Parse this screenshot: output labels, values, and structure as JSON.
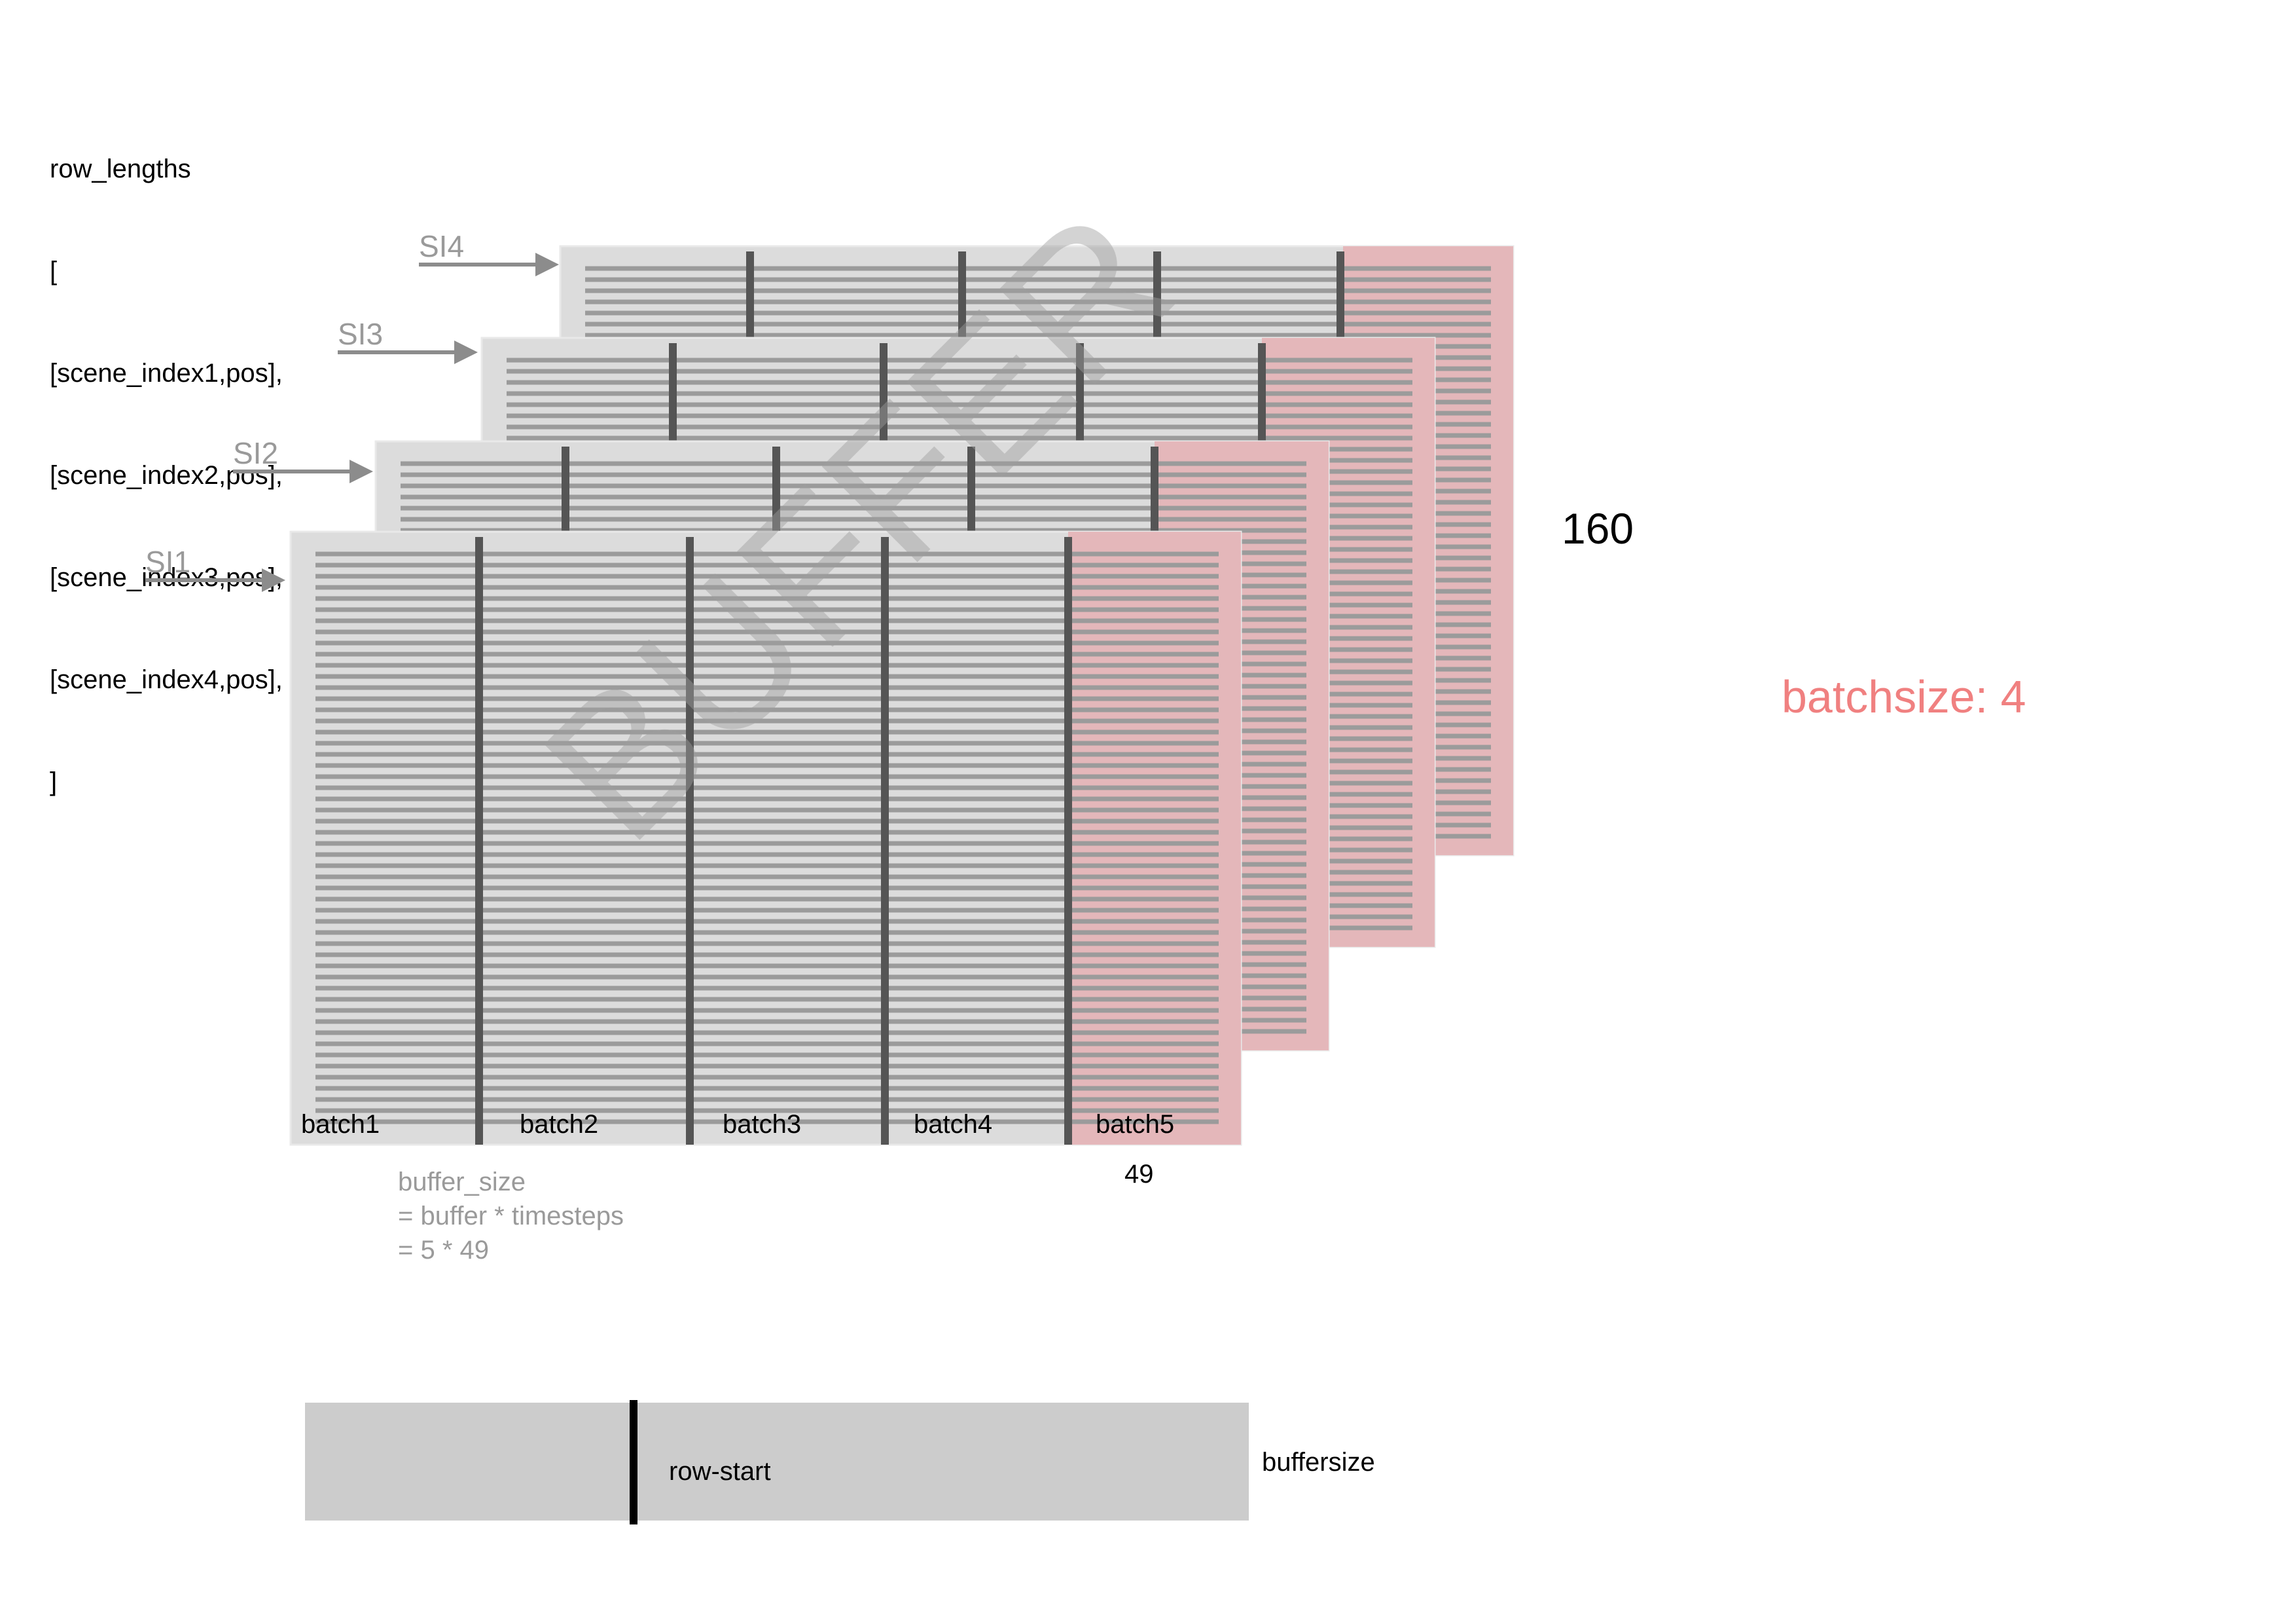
{
  "row_lengths": {
    "title": "row_lengths",
    "lines": [
      "[",
      "[scene_index1,pos],",
      "[scene_index2,pos],",
      "[scene_index3,pos],",
      "[scene_index4,pos],",
      "]"
    ]
  },
  "scene_labels": [
    "SI4",
    "SI3",
    "SI2",
    "SI1"
  ],
  "watermark": "BUFFER",
  "batch_labels": [
    "batch1",
    "batch2",
    "batch3",
    "batch4",
    "batch5"
  ],
  "timesteps_label": "49",
  "rows_label": "160",
  "batchsize_label": "batchsize: 4",
  "buffer_formula": [
    "buffer_size",
    "= buffer * timesteps",
    "= 5 * 49"
  ],
  "bottom_bar": {
    "marker_label": "row-start",
    "end_label": "buffersize"
  },
  "colors": {
    "sheet": "#dcdcdc",
    "line": "#9b9b9b",
    "divider": "#555555",
    "pink": "#e5b0b4",
    "accent_text": "#f08080",
    "gray_text": "#9a9a9a",
    "bar": "#cccccc"
  }
}
